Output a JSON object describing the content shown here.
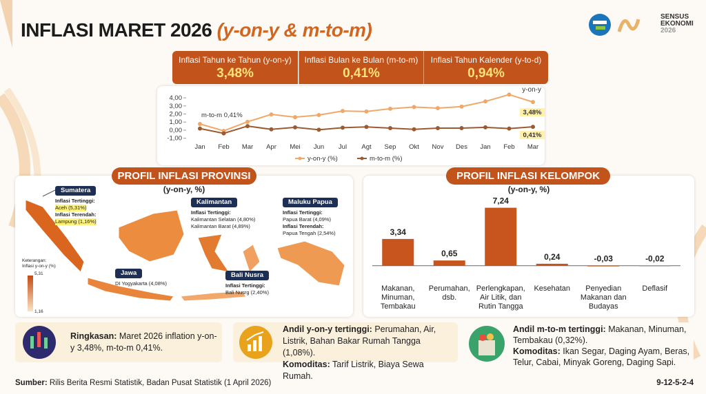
{
  "header": {
    "title": "INFLASI MARET 2026",
    "title_suffix": "(y-on-y & m-to-m)",
    "logo": [
      "SENSUS",
      "EKONOMI",
      "2026"
    ]
  },
  "kpis": [
    {
      "label": "Inflasi Tahun ke Tahun (y-on-y)",
      "value": "3,48%"
    },
    {
      "label": "Inflasi Bulan ke Bulan (m-to-m)",
      "value": "0,41%"
    },
    {
      "label": "Inflasi Tahun Kalender (y-to-d)",
      "value": "0,94%"
    }
  ],
  "chart_data": [
    {
      "type": "line",
      "categories": [
        "Jan",
        "Feb",
        "Mar",
        "Apr",
        "Mei",
        "Jun",
        "Jul",
        "Agt",
        "Sep",
        "Okt",
        "Nov",
        "Des",
        "Jan",
        "Feb",
        "Mar"
      ],
      "series": [
        {
          "name": "y-on-y (%)",
          "color": "#f0a868",
          "values": [
            0.76,
            -0.09,
            1.03,
            1.95,
            1.6,
            1.87,
            2.37,
            2.31,
            2.65,
            2.86,
            2.72,
            2.92,
            3.55,
            4.4,
            3.48
          ],
          "value_labels": [
            null,
            null,
            null,
            null,
            null,
            null,
            null,
            null,
            null,
            null,
            null,
            null,
            null,
            null,
            "3,48%"
          ]
        },
        {
          "name": "m-to-m (%)",
          "color": "#9a5a32",
          "values": [
            0.2,
            -0.4,
            0.5,
            0.1,
            0.35,
            0.05,
            0.3,
            0.4,
            0.25,
            0.1,
            0.25,
            0.25,
            0.35,
            0.2,
            0.41
          ],
          "value_labels": [
            null,
            null,
            null,
            null,
            null,
            null,
            null,
            null,
            null,
            null,
            null,
            null,
            null,
            null,
            "0,41%"
          ]
        }
      ],
      "annotations": [
        "m-to-m 0,41%",
        "y-on-y"
      ],
      "ylim": [
        -1.2,
        4.6
      ],
      "yticks": [
        {
          "value": 4,
          "label": "4,00"
        },
        {
          "value": 3,
          "label": "3,00"
        },
        {
          "value": 2,
          "label": "2,00"
        },
        {
          "value": 1,
          "label": "1,00"
        },
        {
          "value": 0,
          "label": "0,00"
        },
        {
          "value": -1,
          "label": "-1,00"
        }
      ]
    },
    {
      "type": "bar",
      "title": "PROFIL INFLASI KELOMPOK",
      "subtitle": "(y-on-y, %)",
      "categories": [
        "Makanan,\nMinuman,\nTembakau",
        "Perumahan,\ndsb.",
        "Perlengkapan,\nAir Litik, dan\nRutin Tangga",
        "Kesehatan",
        "Penyedian\nMakanan dan\nBudayas",
        "Deflasif"
      ],
      "values": [
        3.34,
        0.65,
        7.24,
        0.24,
        -0.03,
        -0.02
      ],
      "value_labels": [
        "3,34",
        "0,65",
        "7,24",
        "0,24",
        "-0,03",
        "-0,02"
      ],
      "colors": [
        "#c8541e",
        "#c8541e",
        "#c8541e",
        "#c8541e",
        "#c8541e",
        "#a0a0a0"
      ],
      "ylim": [
        -0.8,
        9.1
      ]
    }
  ],
  "province": {
    "title": "PROFIL INFLASI PROVINSI",
    "subtitle": "(y-on-y, %)",
    "regions": [
      {
        "name": "Sumatera",
        "lines": [
          "Inflasi Tertinggi:",
          "Aceh (5,31%)",
          "Inflasi Terendah:",
          "Lampung (1,16%)"
        ]
      },
      {
        "name": "Kalimantan",
        "lines": [
          "Inflasi Tertinggi:",
          "Kalimantan Selatan (4,80%)",
          "Kalimantan Barat (4,89%)"
        ]
      },
      {
        "name": "Maluku Papua",
        "lines": [
          "Inflasi Tertinggi:",
          "Papua Barat (4,09%)",
          "Inflasi Terendah:",
          "Papua Tengah (2,54%)"
        ]
      },
      {
        "name": "Jawa",
        "lines": [
          "DI Yogyakarta (4,08%)"
        ]
      },
      {
        "name": "Bali Nusra",
        "lines": [
          "Inflasi Tertinggi:",
          "Bali Nusrg (2,40%)"
        ]
      }
    ],
    "legend": {
      "title": "Keterangan:",
      "subtitle": "Inflasi y-on-y (%)",
      "max": "5,31",
      "min": "1,16"
    }
  },
  "summaries": [
    {
      "lead": "Ringkasan:",
      "text": "Maret 2026 inflation y-on-y 3,48%, m-to-m 0,41%."
    },
    {
      "lead": "Andil y-on-y tertinggi:",
      "text": "Perumahan, Air, Listrik, Bahan Bakar Rumah Tangga (1,08%).",
      "lead2": "Komoditas:",
      "text2": "Tarif Listrik, Biaya Sewa Rumah."
    },
    {
      "lead": "Andil m-to-m tertinggi:",
      "text": "Makanan, Minuman, Tembakau (0,32%).",
      "lead2": "Komoditas:",
      "text2": "Ikan Segar, Daging Ayam, Beras, Telur, Cabai, Minyak Goreng, Daging Sapi."
    }
  ],
  "footer": {
    "source_label": "Sumber:",
    "source": "Rilis Berita Resmi Statistik, Badan Pusat Statistik (1 April 2026)",
    "code": "9-12-5-2-4"
  }
}
